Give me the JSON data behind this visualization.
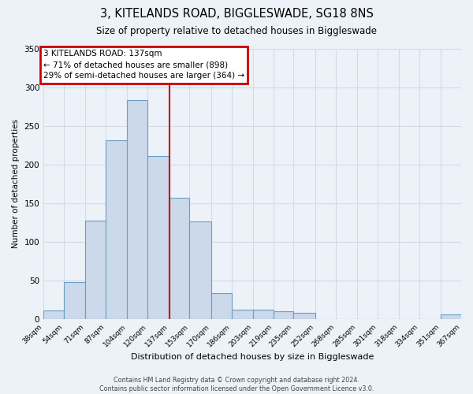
{
  "title": "3, KITELANDS ROAD, BIGGLESWADE, SG18 8NS",
  "subtitle": "Size of property relative to detached houses in Biggleswade",
  "xlabel": "Distribution of detached houses by size in Biggleswade",
  "ylabel": "Number of detached properties",
  "bin_edges": [
    38,
    54,
    71,
    87,
    104,
    120,
    137,
    153,
    170,
    186,
    203,
    219,
    235,
    252,
    268,
    285,
    301,
    318,
    334,
    351,
    367
  ],
  "bar_heights": [
    11,
    48,
    127,
    231,
    283,
    211,
    157,
    126,
    34,
    12,
    12,
    10,
    8,
    0,
    0,
    0,
    0,
    0,
    0,
    6
  ],
  "bin_labels": [
    "38sqm",
    "54sqm",
    "71sqm",
    "87sqm",
    "104sqm",
    "120sqm",
    "137sqm",
    "153sqm",
    "170sqm",
    "186sqm",
    "203sqm",
    "219sqm",
    "235sqm",
    "252sqm",
    "268sqm",
    "285sqm",
    "301sqm",
    "318sqm",
    "334sqm",
    "351sqm",
    "367sqm"
  ],
  "bar_color": "#ccd9eb",
  "bar_edge_color": "#6a9ec4",
  "property_line_x": 137,
  "property_line_color": "#cc0000",
  "annotation_title": "3 KITELANDS ROAD: 137sqm",
  "annotation_line1": "← 71% of detached houses are smaller (898)",
  "annotation_line2": "29% of semi-detached houses are larger (364) →",
  "annotation_box_color": "#cc0000",
  "ylim": [
    0,
    350
  ],
  "yticks": [
    0,
    50,
    100,
    150,
    200,
    250,
    300,
    350
  ],
  "footer1": "Contains HM Land Registry data © Crown copyright and database right 2024.",
  "footer2": "Contains public sector information licensed under the Open Government Licence v3.0.",
  "background_color": "#edf2f9",
  "grid_color": "#d0dce8"
}
